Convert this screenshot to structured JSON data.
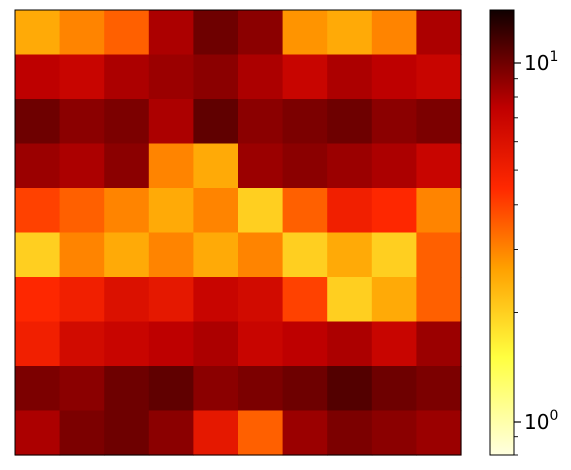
{
  "chart_data": {
    "type": "heatmap",
    "title": "",
    "xlabel": "",
    "ylabel": "",
    "colormap": "hot_r",
    "color_scale": "log",
    "colorbar": {
      "range": [
        0.8,
        14
      ],
      "ticks": [
        {
          "value": 1,
          "base": "10",
          "exp": "0"
        },
        {
          "value": 10,
          "base": "10",
          "exp": "1"
        }
      ],
      "minor_ticks": [
        0.8,
        0.9,
        2,
        3,
        4,
        5,
        6,
        7,
        8,
        9
      ]
    },
    "grid": false,
    "rows": 10,
    "cols": 10,
    "row_band_levels": [
      3.0,
      8.0,
      10.0,
      8.5,
      3.0,
      2.2,
      5.5,
      7.5,
      10.0,
      8.0
    ],
    "values": [
      [
        2.5,
        3.0,
        3.5,
        8.0,
        10.0,
        9.0,
        2.8,
        2.5,
        3.0,
        8.0
      ],
      [
        7.5,
        7.0,
        8.0,
        8.5,
        9.0,
        8.0,
        7.0,
        8.0,
        7.5,
        7.0
      ],
      [
        10.0,
        9.0,
        9.5,
        8.0,
        10.5,
        9.0,
        9.5,
        10.0,
        9.0,
        9.5
      ],
      [
        8.5,
        8.0,
        9.0,
        3.0,
        2.5,
        8.5,
        9.0,
        8.5,
        8.0,
        7.0
      ],
      [
        4.0,
        3.5,
        3.0,
        2.5,
        3.0,
        2.0,
        3.5,
        5.0,
        4.5,
        3.0
      ],
      [
        2.0,
        3.0,
        2.5,
        3.0,
        2.5,
        3.0,
        2.0,
        2.5,
        2.0,
        3.5
      ],
      [
        4.5,
        5.0,
        6.0,
        5.5,
        7.0,
        6.5,
        4.0,
        2.0,
        2.5,
        3.5
      ],
      [
        5.0,
        6.5,
        7.0,
        7.5,
        8.0,
        7.0,
        7.5,
        8.0,
        7.0,
        8.5
      ],
      [
        9.5,
        9.0,
        10.0,
        10.5,
        9.0,
        9.5,
        10.0,
        11.0,
        10.0,
        9.5
      ],
      [
        8.0,
        9.5,
        10.0,
        9.0,
        5.5,
        3.5,
        8.5,
        9.5,
        9.0,
        8.5
      ]
    ]
  }
}
